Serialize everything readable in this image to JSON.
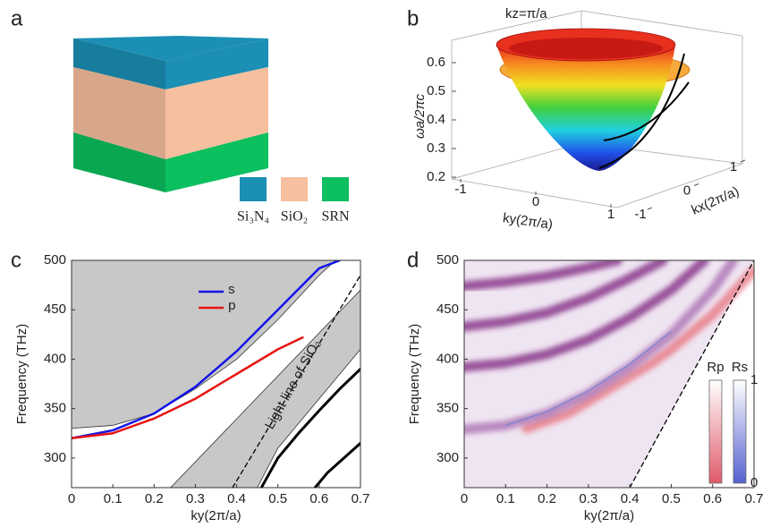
{
  "chart_data": [
    {
      "type": "schematic",
      "label": "a",
      "series": [
        {
          "name": "Si₃N₄",
          "color": "#1b8fb4"
        },
        {
          "name": "SiO₂",
          "color": "#f6bf9e"
        },
        {
          "name": "SRN",
          "color": "#0cbf5f"
        }
      ]
    },
    {
      "type": "surface3d",
      "label": "b",
      "title": "kz=π/a",
      "xlabel": "ky(2π/a)",
      "ylabel": "kx(2π/a)",
      "zlabel": "ωa/2πc",
      "xlim": [
        -1,
        1
      ],
      "xticks": [
        -1,
        0,
        1
      ],
      "ylim": [
        -1,
        1
      ],
      "yticks": [
        -1,
        0,
        1
      ],
      "zlim": [
        0.2,
        0.6
      ],
      "zticks": [
        0.2,
        0.3,
        0.4,
        0.5,
        0.6
      ]
    },
    {
      "type": "line",
      "label": "c",
      "xlabel": "ky(2π/a)",
      "ylabel": "Frequency (THz)",
      "xlim": [
        0,
        0.7
      ],
      "xticks": [
        0,
        0.1,
        0.2,
        0.3,
        0.4,
        0.5,
        0.6,
        0.7
      ],
      "ylim": [
        270,
        500
      ],
      "yticks": [
        300,
        350,
        400,
        450,
        500
      ],
      "legend": "upper center",
      "annotation": "Light line of SiO₂",
      "series": [
        {
          "style": "fill-above",
          "color": "#c8c8c8",
          "x": [
            0,
            0.1,
            0.2,
            0.3,
            0.4,
            0.5,
            0.6,
            0.64
          ],
          "values": [
            330,
            333,
            345,
            370,
            400,
            440,
            485,
            500
          ]
        },
        {
          "style": "polygon",
          "color": "#c8c8c8",
          "x": [
            0.24,
            0.7,
            0.7,
            0.6,
            0.5,
            0.45
          ],
          "values": [
            270,
            470,
            410,
            360,
            310,
            270
          ]
        },
        {
          "style": "dashed",
          "color": "#000000",
          "x": [
            0.39,
            0.7
          ],
          "values": [
            270,
            485
          ]
        },
        {
          "style": "thick",
          "color": "#000000",
          "x": [
            0.46,
            0.5,
            0.55,
            0.6,
            0.65,
            0.7
          ],
          "values": [
            270,
            300,
            325,
            348,
            370,
            390
          ]
        },
        {
          "style": "thick",
          "color": "#000000",
          "x": [
            0.59,
            0.62,
            0.66,
            0.7
          ],
          "values": [
            270,
            285,
            300,
            315
          ]
        },
        {
          "name": "s",
          "style": "line",
          "color": "#1414e6",
          "x": [
            0,
            0.1,
            0.2,
            0.3,
            0.4,
            0.5,
            0.6,
            0.65
          ],
          "values": [
            320,
            328,
            345,
            372,
            408,
            450,
            492,
            500
          ]
        },
        {
          "name": "p",
          "style": "line",
          "color": "#e61414",
          "x": [
            0,
            0.1,
            0.2,
            0.3,
            0.4,
            0.5,
            0.56
          ],
          "values": [
            320,
            325,
            340,
            360,
            385,
            410,
            422
          ]
        }
      ]
    },
    {
      "type": "line",
      "label": "d",
      "xlabel": "ky(2π/a)",
      "ylabel": "Frequency (THz)",
      "xlim": [
        0,
        0.7
      ],
      "xticks": [
        0,
        0.1,
        0.2,
        0.3,
        0.4,
        0.5,
        0.6,
        0.7
      ],
      "ylim": [
        270,
        500
      ],
      "yticks": [
        300,
        350,
        400,
        450,
        500
      ],
      "colorbars": [
        {
          "label": "Rp",
          "color": "#e05a6a"
        },
        {
          "label": "Rs",
          "color": "#5560d0"
        }
      ],
      "cbar_ticks": [
        0,
        1
      ],
      "series": [
        {
          "style": "region",
          "color": "#efe4f1",
          "x": [
            0,
            0.4,
            0.7,
            0
          ],
          "values": [
            270,
            270,
            500,
            500
          ]
        },
        {
          "style": "glow",
          "color": "#e8808a",
          "x": [
            0.15,
            0.25,
            0.35,
            0.45,
            0.5,
            0.6,
            0.7
          ],
          "values": [
            330,
            345,
            370,
            395,
            410,
            445,
            490
          ]
        },
        {
          "style": "glow",
          "color": "#8a3a8c",
          "x": [
            0,
            0.1,
            0.2,
            0.3,
            0.37
          ],
          "values": [
            474,
            478,
            484,
            493,
            500
          ]
        },
        {
          "style": "glow",
          "color": "#8a3a8c",
          "x": [
            0,
            0.1,
            0.2,
            0.3,
            0.4,
            0.48
          ],
          "values": [
            433,
            438,
            447,
            462,
            482,
            500
          ]
        },
        {
          "style": "glow",
          "color": "#8a3a8c",
          "x": [
            0,
            0.1,
            0.2,
            0.3,
            0.4,
            0.5,
            0.58
          ],
          "values": [
            392,
            396,
            405,
            420,
            442,
            470,
            500
          ]
        },
        {
          "style": "glow",
          "color": "#b07ab8",
          "x": [
            0,
            0.1,
            0.2,
            0.3,
            0.4,
            0.5,
            0.6,
            0.65
          ],
          "values": [
            329,
            333,
            345,
            365,
            392,
            425,
            470,
            500
          ]
        },
        {
          "style": "thin",
          "color": "#6a7fd8",
          "x": [
            0.1,
            0.2,
            0.3,
            0.4,
            0.5
          ],
          "values": [
            333,
            347,
            368,
            395,
            428
          ]
        },
        {
          "style": "dashed",
          "color": "#000000",
          "x": [
            0.4,
            0.7
          ],
          "values": [
            270,
            500
          ]
        }
      ]
    }
  ]
}
